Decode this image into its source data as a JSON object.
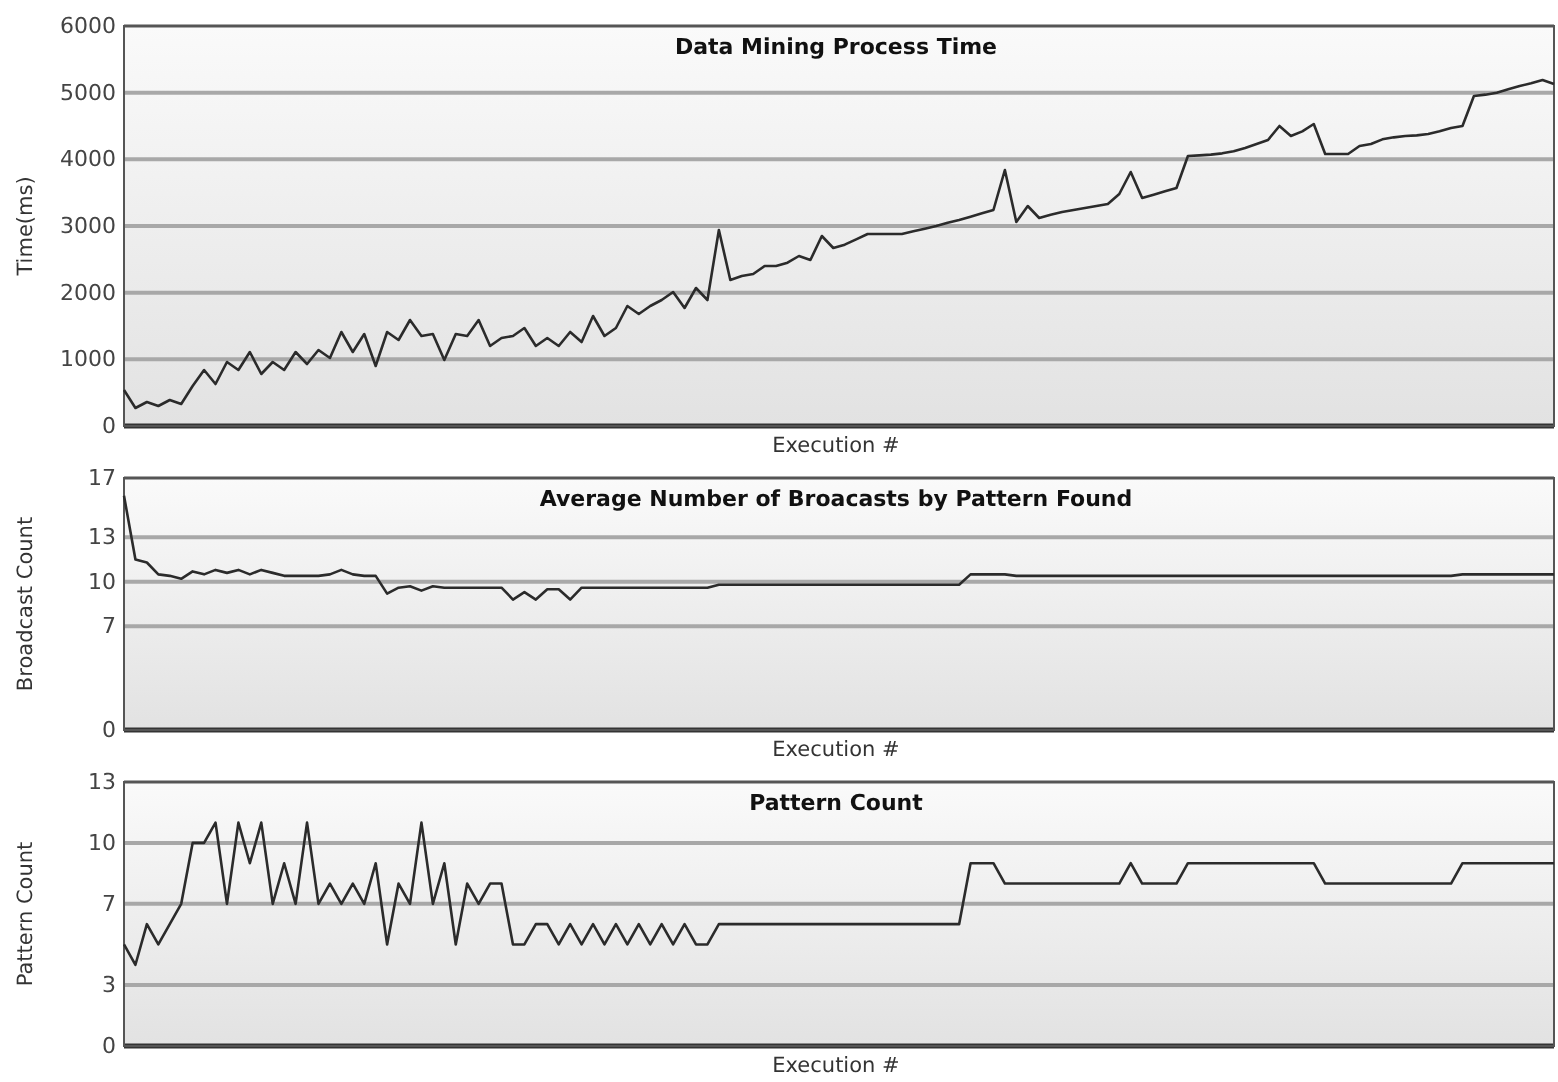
{
  "chart_data": [
    {
      "type": "line",
      "title": "Data Mining Process Time",
      "xlabel": "Execution #",
      "ylabel": "Time(ms)",
      "color": "#2b2b2b",
      "grid": "y",
      "tick_labels": "y",
      "ylim": [
        0,
        6000
      ],
      "yticks": [
        0,
        1000,
        2000,
        3000,
        4000,
        5000,
        6000
      ],
      "categories": [
        null,
        null,
        null,
        null,
        null,
        null,
        null,
        null,
        null,
        null,
        null,
        null,
        null,
        null,
        null,
        null,
        null,
        null,
        null,
        null,
        null,
        null,
        null,
        null,
        null,
        null,
        null,
        null,
        null,
        null,
        null,
        null,
        null,
        null,
        null,
        null,
        null,
        null,
        null,
        null,
        null,
        null,
        null,
        null,
        null,
        null,
        null,
        null,
        null,
        null,
        null,
        null,
        null,
        null,
        null,
        null,
        null,
        null,
        null,
        null,
        null,
        null,
        null,
        null,
        null,
        null,
        null,
        null,
        null,
        null,
        null,
        null,
        null,
        null,
        null,
        null,
        null,
        null,
        null,
        null,
        null,
        null,
        null,
        null,
        null,
        null,
        null,
        null,
        null,
        null,
        null,
        null,
        null,
        null,
        null,
        null,
        null,
        null,
        null,
        null,
        null,
        null,
        null,
        null,
        null,
        null,
        null,
        null,
        null,
        null,
        null,
        null,
        null,
        null,
        null,
        null,
        null,
        null,
        null,
        null,
        null,
        null,
        null,
        null,
        null,
        null
      ],
      "values": [
        540,
        270,
        360,
        300,
        390,
        330,
        600,
        840,
        630,
        960,
        840,
        1110,
        780,
        960,
        840,
        1110,
        930,
        1140,
        1020,
        1410,
        1110,
        1380,
        900,
        1410,
        1290,
        1590,
        1350,
        1380,
        990,
        1380,
        1350,
        1590,
        1200,
        1320,
        1350,
        1470,
        1200,
        1320,
        1200,
        1410,
        1260,
        1650,
        1350,
        1470,
        1800,
        1680,
        1800,
        1890,
        2010,
        1770,
        2070,
        1890,
        2940,
        2190,
        2250,
        2280,
        2400,
        2400,
        2450,
        2550,
        2490,
        2850,
        2670,
        2720,
        2800,
        2880,
        2880,
        2880,
        2880,
        2920,
        2960,
        3000,
        3050,
        3090,
        3140,
        3190,
        3240,
        3840,
        3060,
        3300,
        3120,
        3170,
        3210,
        3240,
        3270,
        3300,
        3330,
        3480,
        3810,
        3420,
        3470,
        3520,
        3570,
        4050,
        4060,
        4070,
        4090,
        4120,
        4170,
        4230,
        4290,
        4500,
        4350,
        4420,
        4530,
        4080,
        4080,
        4080,
        4200,
        4230,
        4300,
        4330,
        4350,
        4360,
        4380,
        4420,
        4470,
        4500,
        4950,
        4970,
        5000,
        5050,
        5100,
        5140,
        5190,
        5130
      ]
    },
    {
      "type": "line",
      "title": "Average Number of Broacasts by Pattern Found",
      "xlabel": "Execution #",
      "ylabel": "Broadcast Count",
      "color": "#2b2b2b",
      "grid": "y",
      "tick_labels": "y",
      "ylim": [
        0,
        17
      ],
      "yticks": [
        0,
        7,
        10,
        13,
        17
      ],
      "categories": [
        null,
        null,
        null,
        null,
        null,
        null,
        null,
        null,
        null,
        null,
        null,
        null,
        null,
        null,
        null,
        null,
        null,
        null,
        null,
        null,
        null,
        null,
        null,
        null,
        null,
        null,
        null,
        null,
        null,
        null,
        null,
        null,
        null,
        null,
        null,
        null,
        null,
        null,
        null,
        null,
        null,
        null,
        null,
        null,
        null,
        null,
        null,
        null,
        null,
        null,
        null,
        null,
        null,
        null,
        null,
        null,
        null,
        null,
        null,
        null,
        null,
        null,
        null,
        null,
        null,
        null,
        null,
        null,
        null,
        null,
        null,
        null,
        null,
        null,
        null,
        null,
        null,
        null,
        null,
        null,
        null,
        null,
        null,
        null,
        null,
        null,
        null,
        null,
        null,
        null,
        null,
        null,
        null,
        null,
        null,
        null,
        null,
        null,
        null,
        null,
        null,
        null,
        null,
        null,
        null,
        null,
        null,
        null,
        null,
        null,
        null,
        null,
        null,
        null,
        null,
        null,
        null,
        null,
        null,
        null,
        null,
        null,
        null,
        null,
        null,
        null
      ],
      "values": [
        15.8,
        11.5,
        11.3,
        10.5,
        10.4,
        10.2,
        10.7,
        10.5,
        10.8,
        10.6,
        10.8,
        10.5,
        10.8,
        10.6,
        10.4,
        10.4,
        10.4,
        10.4,
        10.5,
        10.8,
        10.5,
        10.4,
        10.4,
        9.2,
        9.6,
        9.7,
        9.4,
        9.7,
        9.6,
        9.6,
        9.6,
        9.6,
        9.6,
        9.6,
        8.8,
        9.3,
        8.8,
        9.5,
        9.5,
        8.8,
        9.6,
        9.6,
        9.6,
        9.6,
        9.6,
        9.6,
        9.6,
        9.6,
        9.6,
        9.6,
        9.6,
        9.6,
        9.8,
        9.8,
        9.8,
        9.8,
        9.8,
        9.8,
        9.8,
        9.8,
        9.8,
        9.8,
        9.8,
        9.8,
        9.8,
        9.8,
        9.8,
        9.8,
        9.8,
        9.8,
        9.8,
        9.8,
        9.8,
        9.8,
        10.5,
        10.5,
        10.5,
        10.5,
        10.4,
        10.4,
        10.4,
        10.4,
        10.4,
        10.4,
        10.4,
        10.4,
        10.4,
        10.4,
        10.4,
        10.4,
        10.4,
        10.4,
        10.4,
        10.4,
        10.4,
        10.4,
        10.4,
        10.4,
        10.4,
        10.4,
        10.4,
        10.4,
        10.4,
        10.4,
        10.4,
        10.4,
        10.4,
        10.4,
        10.4,
        10.4,
        10.4,
        10.4,
        10.4,
        10.4,
        10.4,
        10.4,
        10.4,
        10.5,
        10.5,
        10.5,
        10.5,
        10.5,
        10.5,
        10.5,
        10.5,
        10.5
      ]
    },
    {
      "type": "line",
      "title": "Pattern Count",
      "xlabel": "Execution #",
      "ylabel": "Pattern Count",
      "color": "#2b2b2b",
      "grid": "y",
      "tick_labels": "y",
      "ylim": [
        0,
        13
      ],
      "yticks": [
        0,
        3,
        7,
        10,
        13
      ],
      "categories": [
        null,
        null,
        null,
        null,
        null,
        null,
        null,
        null,
        null,
        null,
        null,
        null,
        null,
        null,
        null,
        null,
        null,
        null,
        null,
        null,
        null,
        null,
        null,
        null,
        null,
        null,
        null,
        null,
        null,
        null,
        null,
        null,
        null,
        null,
        null,
        null,
        null,
        null,
        null,
        null,
        null,
        null,
        null,
        null,
        null,
        null,
        null,
        null,
        null,
        null,
        null,
        null,
        null,
        null,
        null,
        null,
        null,
        null,
        null,
        null,
        null,
        null,
        null,
        null,
        null,
        null,
        null,
        null,
        null,
        null,
        null,
        null,
        null,
        null,
        null,
        null,
        null,
        null,
        null,
        null,
        null,
        null,
        null,
        null,
        null,
        null,
        null,
        null,
        null,
        null,
        null,
        null,
        null,
        null,
        null,
        null,
        null,
        null,
        null,
        null,
        null,
        null,
        null,
        null,
        null,
        null,
        null,
        null,
        null,
        null,
        null,
        null,
        null,
        null,
        null,
        null,
        null,
        null,
        null,
        null,
        null,
        null,
        null,
        null,
        null,
        null
      ],
      "values": [
        5,
        4,
        6,
        5,
        6,
        7,
        10,
        10,
        11,
        7,
        11,
        9,
        11,
        7,
        9,
        7,
        11,
        7,
        8,
        7,
        8,
        7,
        9,
        5,
        8,
        7,
        11,
        7,
        9,
        5,
        8,
        7,
        8,
        8,
        5,
        5,
        6,
        6,
        5,
        6,
        5,
        6,
        5,
        6,
        5,
        6,
        5,
        6,
        5,
        6,
        5,
        5,
        6,
        6,
        6,
        6,
        6,
        6,
        6,
        6,
        6,
        6,
        6,
        6,
        6,
        6,
        6,
        6,
        6,
        6,
        6,
        6,
        6,
        6,
        9,
        9,
        9,
        8,
        8,
        8,
        8,
        8,
        8,
        8,
        8,
        8,
        8,
        8,
        9,
        8,
        8,
        8,
        8,
        9,
        9,
        9,
        9,
        9,
        9,
        9,
        9,
        9,
        9,
        9,
        9,
        8,
        8,
        8,
        8,
        8,
        8,
        8,
        8,
        8,
        8,
        8,
        8,
        9,
        9,
        9,
        9,
        9,
        9,
        9,
        9,
        9
      ]
    }
  ]
}
